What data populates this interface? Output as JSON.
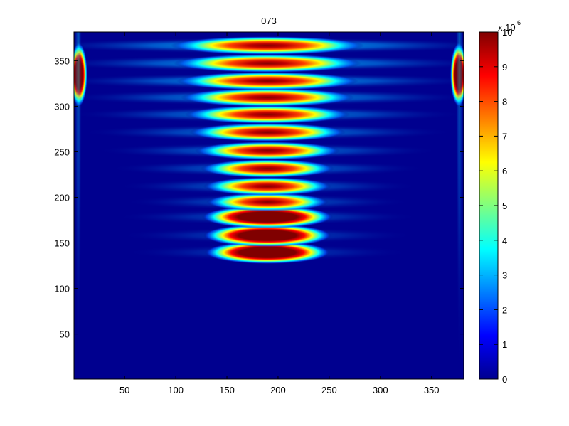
{
  "chart_data": {
    "type": "heatmap",
    "title": "073",
    "xlim": [
      0.5,
      381.5
    ],
    "ylim": [
      0.5,
      381.5
    ],
    "xticks": [
      50,
      100,
      150,
      200,
      250,
      300,
      350
    ],
    "yticks": [
      50,
      100,
      150,
      200,
      250,
      300,
      350
    ],
    "colormap": "jet",
    "colorbar": {
      "clim": [
        0,
        10
      ],
      "ticks": [
        0,
        1,
        2,
        3,
        4,
        5,
        6,
        7,
        8,
        9,
        10
      ],
      "label": "x 10",
      "exponent": "6"
    }
  }
}
